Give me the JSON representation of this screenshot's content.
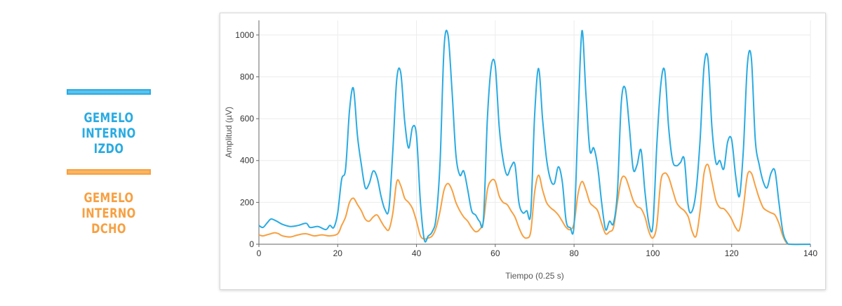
{
  "legend": [
    {
      "label_line1": "GEMELO INTERNO",
      "label_line2": "IZDO",
      "color": "#29abe2",
      "fill": "#5bc2ec"
    },
    {
      "label_line1": "GEMELO INTERNO",
      "label_line2": "DCHO",
      "color": "#f7a041",
      "fill": "#f9b563"
    }
  ],
  "chart_data": {
    "type": "line",
    "xlabel": "Tiempo (0.25 s)",
    "ylabel": "Amplitud (µV)",
    "xlim": [
      0,
      140
    ],
    "ylim": [
      0,
      1070
    ],
    "x_ticks": [
      0,
      20,
      40,
      60,
      80,
      100,
      120,
      140
    ],
    "y_ticks": [
      0,
      200,
      400,
      600,
      800,
      1000
    ],
    "grid": true,
    "series": [
      {
        "name": "GEMELO INTERNO IZDO",
        "color": "#29abe2",
        "points": [
          [
            0,
            90
          ],
          [
            1,
            80
          ],
          [
            2,
            100
          ],
          [
            3,
            120
          ],
          [
            4,
            115
          ],
          [
            5,
            105
          ],
          [
            6,
            95
          ],
          [
            8,
            85
          ],
          [
            10,
            90
          ],
          [
            12,
            100
          ],
          [
            13,
            80
          ],
          [
            15,
            85
          ],
          [
            17,
            70
          ],
          [
            18,
            90
          ],
          [
            19,
            80
          ],
          [
            20,
            150
          ],
          [
            21,
            310
          ],
          [
            22,
            360
          ],
          [
            23,
            640
          ],
          [
            24,
            745
          ],
          [
            25,
            520
          ],
          [
            26,
            380
          ],
          [
            27,
            270
          ],
          [
            28,
            290
          ],
          [
            29,
            350
          ],
          [
            30,
            320
          ],
          [
            31,
            230
          ],
          [
            32,
            165
          ],
          [
            33,
            170
          ],
          [
            34,
            450
          ],
          [
            35,
            790
          ],
          [
            36,
            820
          ],
          [
            37,
            590
          ],
          [
            38,
            460
          ],
          [
            39,
            560
          ],
          [
            40,
            520
          ],
          [
            41,
            200
          ],
          [
            42,
            20
          ],
          [
            43,
            40
          ],
          [
            44,
            60
          ],
          [
            45,
            130
          ],
          [
            46,
            400
          ],
          [
            47,
            940
          ],
          [
            48,
            1000
          ],
          [
            49,
            740
          ],
          [
            50,
            430
          ],
          [
            51,
            330
          ],
          [
            52,
            350
          ],
          [
            53,
            260
          ],
          [
            54,
            160
          ],
          [
            55,
            140
          ],
          [
            56,
            110
          ],
          [
            57,
            120
          ],
          [
            58,
            600
          ],
          [
            59,
            850
          ],
          [
            60,
            850
          ],
          [
            61,
            560
          ],
          [
            62,
            400
          ],
          [
            63,
            330
          ],
          [
            64,
            370
          ],
          [
            65,
            380
          ],
          [
            66,
            200
          ],
          [
            67,
            150
          ],
          [
            68,
            160
          ],
          [
            69,
            150
          ],
          [
            70,
            620
          ],
          [
            71,
            840
          ],
          [
            72,
            600
          ],
          [
            73,
            410
          ],
          [
            74,
            310
          ],
          [
            75,
            290
          ],
          [
            76,
            370
          ],
          [
            77,
            300
          ],
          [
            78,
            110
          ],
          [
            79,
            80
          ],
          [
            80,
            90
          ],
          [
            81,
            590
          ],
          [
            82,
            1020
          ],
          [
            83,
            720
          ],
          [
            84,
            450
          ],
          [
            85,
            460
          ],
          [
            86,
            370
          ],
          [
            87,
            200
          ],
          [
            88,
            70
          ],
          [
            89,
            110
          ],
          [
            90,
            100
          ],
          [
            91,
            250
          ],
          [
            92,
            680
          ],
          [
            93,
            745
          ],
          [
            94,
            570
          ],
          [
            95,
            360
          ],
          [
            96,
            380
          ],
          [
            97,
            450
          ],
          [
            98,
            250
          ],
          [
            99,
            100
          ],
          [
            100,
            90
          ],
          [
            101,
            470
          ],
          [
            102,
            760
          ],
          [
            103,
            830
          ],
          [
            104,
            560
          ],
          [
            105,
            400
          ],
          [
            106,
            375
          ],
          [
            107,
            390
          ],
          [
            108,
            405
          ],
          [
            109,
            180
          ],
          [
            110,
            160
          ],
          [
            111,
            260
          ],
          [
            112,
            500
          ],
          [
            113,
            850
          ],
          [
            114,
            885
          ],
          [
            115,
            560
          ],
          [
            116,
            390
          ],
          [
            117,
            400
          ],
          [
            118,
            360
          ],
          [
            119,
            490
          ],
          [
            120,
            500
          ],
          [
            121,
            330
          ],
          [
            122,
            230
          ],
          [
            123,
            460
          ],
          [
            124,
            860
          ],
          [
            125,
            890
          ],
          [
            126,
            500
          ],
          [
            127,
            380
          ],
          [
            128,
            300
          ],
          [
            129,
            270
          ],
          [
            130,
            340
          ],
          [
            131,
            350
          ],
          [
            132,
            200
          ],
          [
            133,
            60
          ],
          [
            134,
            10
          ],
          [
            135,
            0
          ],
          [
            140,
            0
          ]
        ]
      },
      {
        "name": "GEMELO INTERNO DCHO",
        "color": "#f7a041",
        "points": [
          [
            0,
            45
          ],
          [
            1,
            40
          ],
          [
            2,
            45
          ],
          [
            3,
            50
          ],
          [
            4,
            55
          ],
          [
            5,
            50
          ],
          [
            6,
            40
          ],
          [
            8,
            35
          ],
          [
            10,
            45
          ],
          [
            12,
            50
          ],
          [
            14,
            40
          ],
          [
            16,
            45
          ],
          [
            18,
            40
          ],
          [
            20,
            50
          ],
          [
            21,
            90
          ],
          [
            22,
            130
          ],
          [
            23,
            200
          ],
          [
            24,
            220
          ],
          [
            25,
            190
          ],
          [
            26,
            160
          ],
          [
            27,
            120
          ],
          [
            28,
            110
          ],
          [
            29,
            130
          ],
          [
            30,
            140
          ],
          [
            31,
            110
          ],
          [
            32,
            80
          ],
          [
            33,
            70
          ],
          [
            34,
            150
          ],
          [
            35,
            300
          ],
          [
            36,
            280
          ],
          [
            37,
            220
          ],
          [
            38,
            200
          ],
          [
            39,
            170
          ],
          [
            40,
            110
          ],
          [
            41,
            40
          ],
          [
            42,
            25
          ],
          [
            43,
            30
          ],
          [
            44,
            40
          ],
          [
            45,
            80
          ],
          [
            46,
            160
          ],
          [
            47,
            260
          ],
          [
            48,
            290
          ],
          [
            49,
            260
          ],
          [
            50,
            200
          ],
          [
            51,
            160
          ],
          [
            52,
            130
          ],
          [
            53,
            110
          ],
          [
            54,
            80
          ],
          [
            55,
            60
          ],
          [
            56,
            70
          ],
          [
            57,
            110
          ],
          [
            58,
            260
          ],
          [
            59,
            305
          ],
          [
            60,
            300
          ],
          [
            61,
            230
          ],
          [
            62,
            200
          ],
          [
            63,
            190
          ],
          [
            64,
            160
          ],
          [
            65,
            130
          ],
          [
            66,
            80
          ],
          [
            67,
            40
          ],
          [
            68,
            30
          ],
          [
            69,
            60
          ],
          [
            70,
            250
          ],
          [
            71,
            330
          ],
          [
            72,
            260
          ],
          [
            73,
            200
          ],
          [
            74,
            175
          ],
          [
            75,
            160
          ],
          [
            76,
            140
          ],
          [
            77,
            110
          ],
          [
            78,
            80
          ],
          [
            79,
            70
          ],
          [
            80,
            100
          ],
          [
            81,
            240
          ],
          [
            82,
            300
          ],
          [
            83,
            260
          ],
          [
            84,
            200
          ],
          [
            85,
            180
          ],
          [
            86,
            160
          ],
          [
            87,
            100
          ],
          [
            88,
            50
          ],
          [
            89,
            60
          ],
          [
            90,
            80
          ],
          [
            91,
            200
          ],
          [
            92,
            310
          ],
          [
            93,
            320
          ],
          [
            94,
            270
          ],
          [
            95,
            210
          ],
          [
            96,
            180
          ],
          [
            97,
            170
          ],
          [
            98,
            130
          ],
          [
            99,
            60
          ],
          [
            100,
            30
          ],
          [
            101,
            90
          ],
          [
            102,
            300
          ],
          [
            103,
            340
          ],
          [
            104,
            320
          ],
          [
            105,
            260
          ],
          [
            106,
            200
          ],
          [
            107,
            175
          ],
          [
            108,
            160
          ],
          [
            109,
            130
          ],
          [
            110,
            60
          ],
          [
            111,
            40
          ],
          [
            112,
            160
          ],
          [
            113,
            340
          ],
          [
            114,
            380
          ],
          [
            115,
            300
          ],
          [
            116,
            210
          ],
          [
            117,
            175
          ],
          [
            118,
            170
          ],
          [
            119,
            150
          ],
          [
            120,
            120
          ],
          [
            121,
            80
          ],
          [
            122,
            70
          ],
          [
            123,
            180
          ],
          [
            124,
            330
          ],
          [
            125,
            340
          ],
          [
            126,
            280
          ],
          [
            127,
            220
          ],
          [
            128,
            175
          ],
          [
            129,
            160
          ],
          [
            130,
            150
          ],
          [
            131,
            140
          ],
          [
            132,
            100
          ],
          [
            133,
            40
          ],
          [
            134,
            5
          ],
          [
            135,
            0
          ],
          [
            140,
            0
          ]
        ]
      }
    ]
  }
}
